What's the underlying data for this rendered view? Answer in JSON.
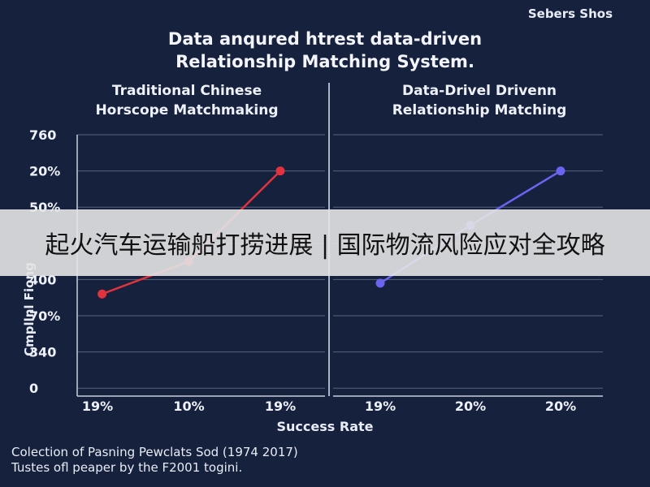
{
  "brand": "Sebers Shos",
  "title_lines": [
    "Data anqured htrest data-driven",
    "Relationship Matching System."
  ],
  "overlay_banner": "起火汽车运输船打捞进展 | 国际物流风险应对全攻略",
  "footer_lines": [
    "Colection of Pasning Pewclats Sod (1974 2017)",
    "Tustes ofl peaper by the F2001 togini."
  ],
  "colors": {
    "background": "#16213e",
    "left_series": "#e0333d",
    "right_series": "#6a64f0",
    "grid": "#8f99ab"
  },
  "chart_data": {
    "type": "line",
    "ylabel": "Cmpllnl Fiong",
    "xlabel": "Success Rate",
    "y_ticks": [
      "760",
      "20%",
      "50%",
      "",
      "400",
      "70%",
      "340",
      "0"
    ],
    "grid": true,
    "panels": [
      {
        "title_lines": [
          "Traditional Chinese",
          "Horscope Matchmaking"
        ],
        "x_ticks": [
          "19%",
          "10%",
          "19%"
        ],
        "series": [
          {
            "x": [
              0.05,
              1.0,
              2.0
            ],
            "y": [
              2.6,
              3.5,
              6.0
            ]
          }
        ]
      },
      {
        "title_lines": [
          "Data-Drivel Drivenn",
          "Relationship Matching"
        ],
        "x_ticks": [
          "19%",
          "20%",
          "20%"
        ],
        "series": [
          {
            "x": [
              0.0,
              1.0,
              2.0
            ],
            "y": [
              2.9,
              4.5,
              6.0
            ]
          }
        ]
      }
    ]
  }
}
